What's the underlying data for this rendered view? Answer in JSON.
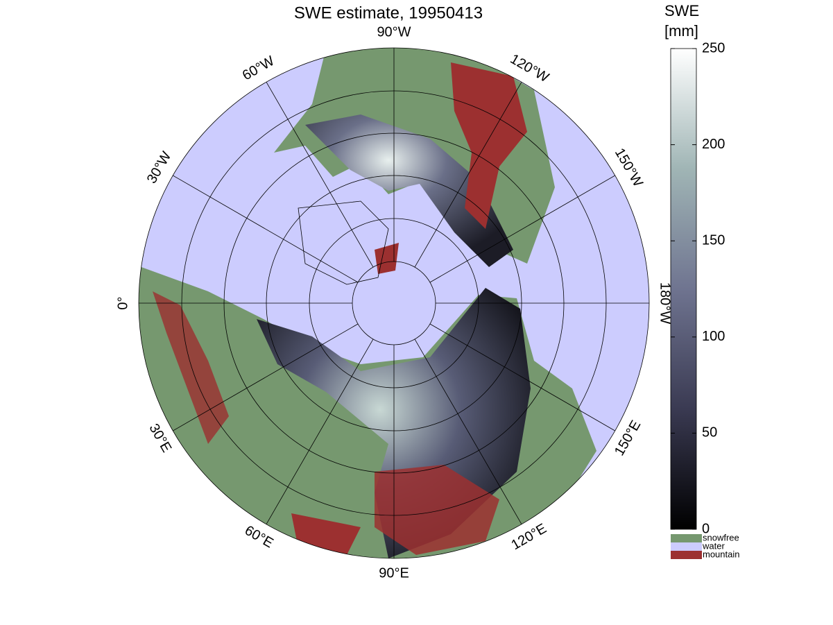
{
  "title": "SWE estimate, 19950413",
  "longitude_labels": [
    "90°W",
    "120°W",
    "150°W",
    "180°W",
    "150°E",
    "120°E",
    "90°E",
    "60°E",
    "30°E",
    "0°",
    "30°W",
    "60°W"
  ],
  "colorbar": {
    "label": [
      "SWE",
      "[mm]"
    ],
    "lim": [
      0,
      250
    ],
    "ticks": [
      0,
      50,
      100,
      150,
      200,
      250
    ],
    "colors": [
      "#000000",
      "#3a3a52",
      "#6f7490",
      "#a0b5b5",
      "#ffffff"
    ]
  },
  "legend": [
    {
      "name": "snowfree",
      "color": "#76986f"
    },
    {
      "name": "water",
      "color": "#ccccfe"
    },
    {
      "name": "mountain",
      "color": "#9c3030"
    }
  ]
}
